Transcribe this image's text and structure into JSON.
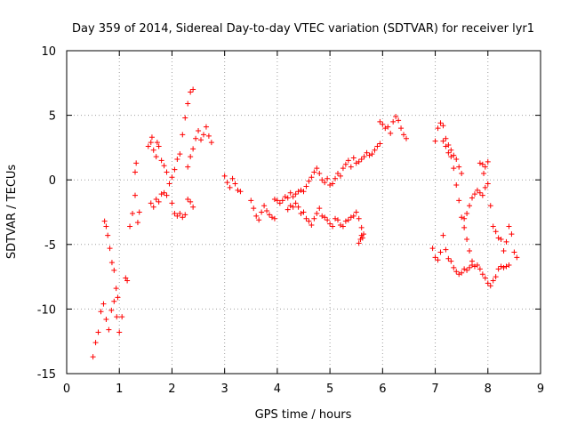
{
  "chart_data": {
    "type": "scatter",
    "title": "Day 359 of 2014, Sidereal Day-to-day VTEC variation (SDTVAR) for receiver lyr1",
    "xlabel": "GPS time / hours",
    "ylabel": "SDTVAR / TECUs",
    "xlim": [
      0,
      9
    ],
    "ylim": [
      -15,
      10
    ],
    "xticks": [
      0,
      1,
      2,
      3,
      4,
      5,
      6,
      7,
      8,
      9
    ],
    "yticks": [
      -15,
      -10,
      -5,
      0,
      5,
      10
    ],
    "grid": true,
    "marker": "+",
    "marker_color": "#ff0000",
    "series": [
      {
        "name": "SDTVAR",
        "points": [
          [
            0.5,
            -13.7
          ],
          [
            0.55,
            -12.6
          ],
          [
            0.6,
            -11.8
          ],
          [
            0.65,
            -10.2
          ],
          [
            0.7,
            -9.6
          ],
          [
            0.75,
            -10.8
          ],
          [
            0.8,
            -11.6
          ],
          [
            0.85,
            -10.1
          ],
          [
            0.9,
            -9.4
          ],
          [
            0.95,
            -10.6
          ],
          [
            1.0,
            -11.8
          ],
          [
            1.05,
            -10.6
          ],
          [
            0.72,
            -3.2
          ],
          [
            0.75,
            -3.6
          ],
          [
            0.78,
            -4.3
          ],
          [
            0.82,
            -5.3
          ],
          [
            0.86,
            -6.4
          ],
          [
            0.9,
            -7.0
          ],
          [
            0.94,
            -8.4
          ],
          [
            0.97,
            -9.1
          ],
          [
            1.12,
            -7.6
          ],
          [
            1.15,
            -7.8
          ],
          [
            1.2,
            -3.6
          ],
          [
            1.25,
            -2.6
          ],
          [
            1.3,
            -1.2
          ],
          [
            1.35,
            -3.3
          ],
          [
            1.38,
            -2.5
          ],
          [
            1.3,
            0.6
          ],
          [
            1.32,
            1.3
          ],
          [
            1.55,
            2.6
          ],
          [
            1.6,
            2.9
          ],
          [
            1.65,
            2.3
          ],
          [
            1.7,
            1.8
          ],
          [
            1.75,
            2.6
          ],
          [
            1.8,
            1.5
          ],
          [
            1.85,
            1.1
          ],
          [
            1.9,
            0.6
          ],
          [
            1.62,
            3.3
          ],
          [
            1.72,
            2.9
          ],
          [
            1.6,
            -1.8
          ],
          [
            1.65,
            -2.1
          ],
          [
            1.7,
            -1.5
          ],
          [
            1.75,
            -1.7
          ],
          [
            1.8,
            -1.1
          ],
          [
            1.85,
            -1.0
          ],
          [
            1.9,
            -1.2
          ],
          [
            1.95,
            -0.3
          ],
          [
            2.0,
            -1.8
          ],
          [
            2.05,
            -2.6
          ],
          [
            2.1,
            -2.8
          ],
          [
            2.15,
            -2.6
          ],
          [
            2.2,
            -2.9
          ],
          [
            2.25,
            -2.7
          ],
          [
            2.3,
            -1.5
          ],
          [
            2.35,
            -1.7
          ],
          [
            2.4,
            -2.1
          ],
          [
            2.0,
            0.2
          ],
          [
            2.05,
            0.8
          ],
          [
            2.1,
            1.6
          ],
          [
            2.15,
            2.0
          ],
          [
            2.2,
            3.5
          ],
          [
            2.25,
            4.8
          ],
          [
            2.3,
            5.9
          ],
          [
            2.35,
            6.8
          ],
          [
            2.4,
            7.0
          ],
          [
            2.3,
            1.0
          ],
          [
            2.35,
            1.8
          ],
          [
            2.4,
            2.4
          ],
          [
            2.45,
            3.2
          ],
          [
            2.5,
            3.8
          ],
          [
            2.55,
            3.1
          ],
          [
            2.6,
            3.5
          ],
          [
            2.65,
            4.1
          ],
          [
            2.7,
            3.4
          ],
          [
            2.75,
            2.9
          ],
          [
            3.0,
            0.3
          ],
          [
            3.05,
            -0.2
          ],
          [
            3.1,
            -0.6
          ],
          [
            3.15,
            0.1
          ],
          [
            3.2,
            -0.3
          ],
          [
            3.25,
            -0.8
          ],
          [
            3.3,
            -0.9
          ],
          [
            3.5,
            -1.6
          ],
          [
            3.55,
            -2.2
          ],
          [
            3.6,
            -2.8
          ],
          [
            3.65,
            -3.1
          ],
          [
            3.7,
            -2.5
          ],
          [
            3.75,
            -2.0
          ],
          [
            3.8,
            -2.4
          ],
          [
            3.85,
            -2.7
          ],
          [
            3.9,
            -2.9
          ],
          [
            3.95,
            -3.0
          ],
          [
            3.95,
            -1.5
          ],
          [
            4.0,
            -1.6
          ],
          [
            4.05,
            -1.8
          ],
          [
            4.1,
            -1.6
          ],
          [
            4.15,
            -1.3
          ],
          [
            4.2,
            -1.4
          ],
          [
            4.25,
            -1.0
          ],
          [
            4.3,
            -1.3
          ],
          [
            4.35,
            -1.1
          ],
          [
            4.4,
            -0.9
          ],
          [
            4.45,
            -0.8
          ],
          [
            4.5,
            -0.9
          ],
          [
            4.55,
            -0.5
          ],
          [
            4.6,
            -0.1
          ],
          [
            4.65,
            0.2
          ],
          [
            4.7,
            0.6
          ],
          [
            4.75,
            0.9
          ],
          [
            4.8,
            0.5
          ],
          [
            4.85,
            0.0
          ],
          [
            4.9,
            -0.2
          ],
          [
            4.95,
            0.1
          ],
          [
            5.0,
            -0.4
          ],
          [
            5.05,
            -0.3
          ],
          [
            5.1,
            0.1
          ],
          [
            5.15,
            0.5
          ],
          [
            5.2,
            0.3
          ],
          [
            5.25,
            0.9
          ],
          [
            5.3,
            1.2
          ],
          [
            5.35,
            1.5
          ],
          [
            5.4,
            1.0
          ],
          [
            5.45,
            1.7
          ],
          [
            5.5,
            1.3
          ],
          [
            5.55,
            1.4
          ],
          [
            5.6,
            1.6
          ],
          [
            5.65,
            1.8
          ],
          [
            5.7,
            2.1
          ],
          [
            5.75,
            1.9
          ],
          [
            5.8,
            2.0
          ],
          [
            5.85,
            2.3
          ],
          [
            5.9,
            2.6
          ],
          [
            5.95,
            2.8
          ],
          [
            4.2,
            -2.3
          ],
          [
            4.25,
            -2.0
          ],
          [
            4.3,
            -2.1
          ],
          [
            4.35,
            -1.8
          ],
          [
            4.4,
            -2.1
          ],
          [
            4.45,
            -2.6
          ],
          [
            4.5,
            -2.5
          ],
          [
            4.55,
            -3.0
          ],
          [
            4.6,
            -3.2
          ],
          [
            4.65,
            -3.5
          ],
          [
            4.7,
            -3.0
          ],
          [
            4.75,
            -2.6
          ],
          [
            4.8,
            -2.2
          ],
          [
            4.85,
            -2.8
          ],
          [
            4.9,
            -2.9
          ],
          [
            4.95,
            -3.1
          ],
          [
            5.0,
            -3.4
          ],
          [
            5.05,
            -3.6
          ],
          [
            5.1,
            -3.0
          ],
          [
            5.15,
            -3.1
          ],
          [
            5.2,
            -3.5
          ],
          [
            5.25,
            -3.6
          ],
          [
            5.3,
            -3.2
          ],
          [
            5.35,
            -3.1
          ],
          [
            5.4,
            -2.9
          ],
          [
            5.45,
            -2.8
          ],
          [
            5.5,
            -2.5
          ],
          [
            5.55,
            -3.0
          ],
          [
            5.6,
            -3.7
          ],
          [
            5.55,
            -4.9
          ],
          [
            5.58,
            -4.6
          ],
          [
            5.62,
            -4.5
          ],
          [
            5.64,
            -4.2
          ],
          [
            5.6,
            -4.3
          ],
          [
            5.95,
            4.5
          ],
          [
            6.0,
            4.3
          ],
          [
            6.05,
            4.0
          ],
          [
            6.1,
            4.1
          ],
          [
            6.15,
            3.6
          ],
          [
            6.2,
            4.5
          ],
          [
            6.25,
            4.9
          ],
          [
            6.3,
            4.6
          ],
          [
            6.35,
            4.0
          ],
          [
            6.4,
            3.5
          ],
          [
            6.45,
            3.2
          ],
          [
            6.95,
            -5.3
          ],
          [
            7.0,
            -6.0
          ],
          [
            7.05,
            -6.2
          ],
          [
            7.1,
            -5.6
          ],
          [
            7.15,
            -4.3
          ],
          [
            7.2,
            -5.4
          ],
          [
            7.25,
            -6.1
          ],
          [
            7.3,
            -6.3
          ],
          [
            7.35,
            -6.8
          ],
          [
            7.4,
            -7.1
          ],
          [
            7.45,
            -7.3
          ],
          [
            7.5,
            -7.2
          ],
          [
            7.55,
            -6.9
          ],
          [
            7.6,
            -7.0
          ],
          [
            7.65,
            -6.8
          ],
          [
            7.7,
            -6.6
          ],
          [
            7.75,
            -6.7
          ],
          [
            7.8,
            -6.6
          ],
          [
            7.85,
            -6.9
          ],
          [
            7.9,
            -7.3
          ],
          [
            7.95,
            -7.6
          ],
          [
            8.0,
            -8.0
          ],
          [
            8.05,
            -8.2
          ],
          [
            8.1,
            -7.8
          ],
          [
            8.15,
            -7.5
          ],
          [
            8.2,
            -6.9
          ],
          [
            8.25,
            -6.7
          ],
          [
            8.3,
            -6.8
          ],
          [
            8.35,
            -6.7
          ],
          [
            8.4,
            -6.6
          ],
          [
            7.0,
            3.0
          ],
          [
            7.05,
            4.0
          ],
          [
            7.1,
            4.4
          ],
          [
            7.15,
            4.2
          ],
          [
            7.2,
            3.2
          ],
          [
            7.25,
            2.7
          ],
          [
            7.3,
            1.8
          ],
          [
            7.35,
            0.9
          ],
          [
            7.4,
            -0.4
          ],
          [
            7.45,
            -1.6
          ],
          [
            7.5,
            -2.9
          ],
          [
            7.55,
            -3.7
          ],
          [
            7.6,
            -4.6
          ],
          [
            7.65,
            -5.5
          ],
          [
            7.7,
            -6.3
          ],
          [
            7.15,
            3.0
          ],
          [
            7.2,
            2.6
          ],
          [
            7.25,
            2.1
          ],
          [
            7.3,
            2.3
          ],
          [
            7.35,
            1.9
          ],
          [
            7.4,
            1.6
          ],
          [
            7.45,
            1.0
          ],
          [
            7.5,
            0.5
          ],
          [
            7.55,
            -3.0
          ],
          [
            7.6,
            -2.6
          ],
          [
            7.65,
            -2.0
          ],
          [
            7.7,
            -1.4
          ],
          [
            7.75,
            -1.1
          ],
          [
            7.8,
            -0.8
          ],
          [
            7.85,
            -1.0
          ],
          [
            7.9,
            -1.2
          ],
          [
            7.95,
            -0.6
          ],
          [
            8.0,
            -0.3
          ],
          [
            8.05,
            -2.0
          ],
          [
            8.1,
            -3.6
          ],
          [
            8.15,
            -4.0
          ],
          [
            8.2,
            -4.5
          ],
          [
            8.25,
            -4.6
          ],
          [
            8.3,
            -5.5
          ],
          [
            8.35,
            -4.8
          ],
          [
            8.4,
            -3.6
          ],
          [
            8.45,
            -4.2
          ],
          [
            8.5,
            -5.6
          ],
          [
            8.55,
            -6.0
          ],
          [
            7.85,
            1.3
          ],
          [
            7.9,
            1.2
          ],
          [
            7.95,
            1.0
          ],
          [
            7.92,
            0.5
          ],
          [
            8.0,
            1.4
          ]
        ]
      }
    ]
  }
}
